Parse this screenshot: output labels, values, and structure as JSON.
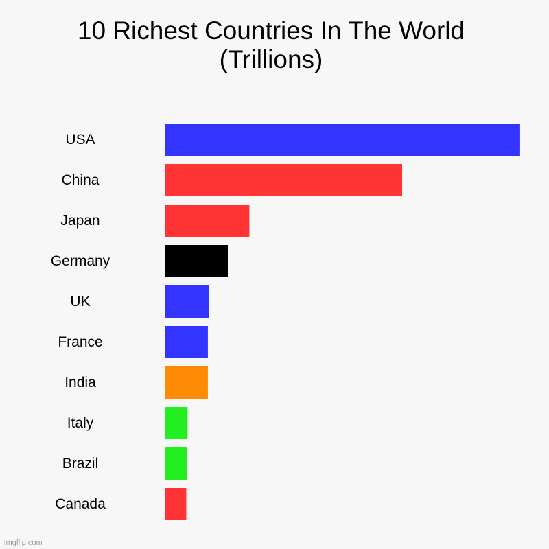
{
  "chart_data": {
    "type": "bar",
    "orientation": "horizontal",
    "title_lines": [
      "10 Richest Countries In The World",
      "(Trillions)"
    ],
    "categories": [
      "USA",
      "China",
      "Japan",
      "Germany",
      "UK",
      "France",
      "India",
      "Italy",
      "Brazil",
      "Canada"
    ],
    "values": [
      21.4,
      14.3,
      5.1,
      3.8,
      2.65,
      2.6,
      2.6,
      1.38,
      1.35,
      1.3
    ],
    "colors": [
      "#3434ff",
      "#ff3535",
      "#ff3535",
      "#000000",
      "#3434ff",
      "#3434ff",
      "#ff8a05",
      "#22ee22",
      "#22ee22",
      "#ff3535"
    ],
    "xlim": [
      0,
      23
    ],
    "grid": false,
    "legend": "none"
  },
  "watermark": "imgflip.com"
}
